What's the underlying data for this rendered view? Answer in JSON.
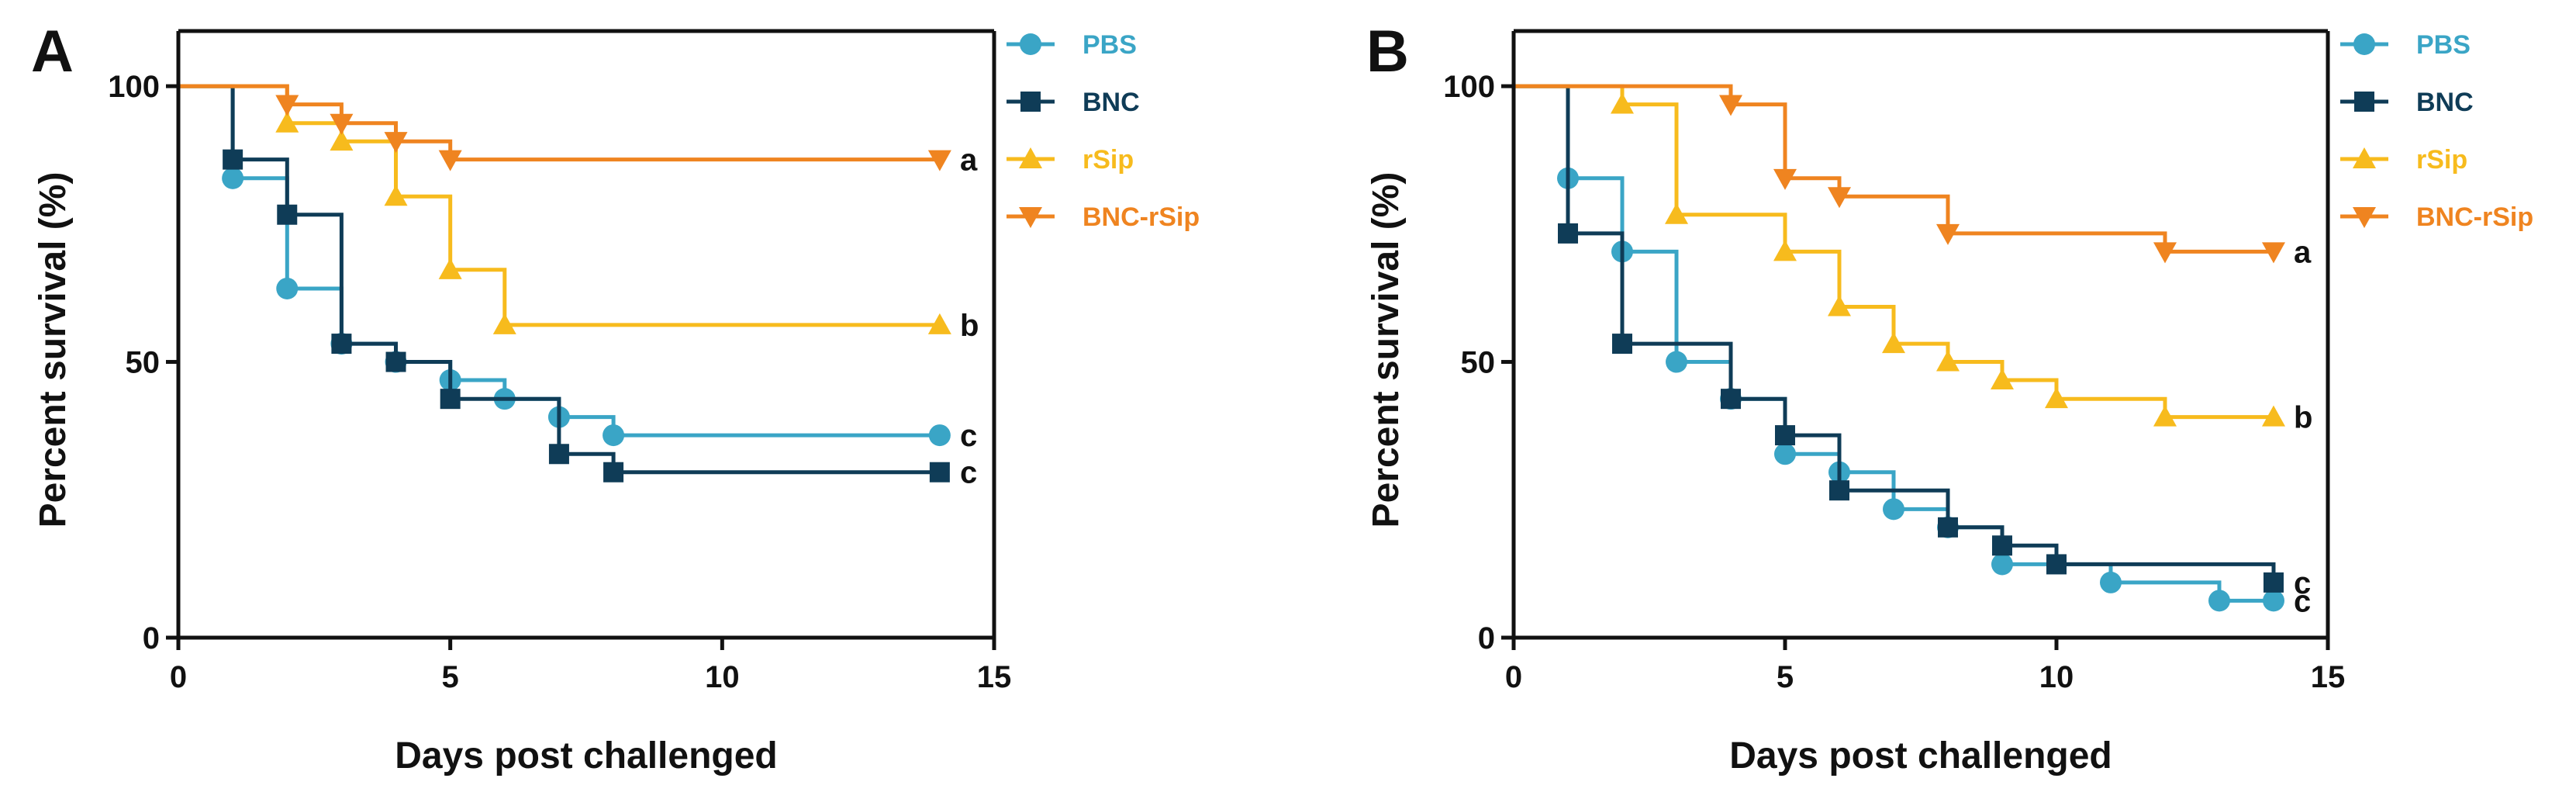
{
  "chart_data": [
    {
      "type": "line",
      "subtype": "kaplan-meier",
      "panel": "A",
      "xlabel": "Days post  challenged",
      "ylabel": "Percent survival (%)",
      "xlim": [
        0,
        15
      ],
      "ylim": [
        0,
        110
      ],
      "xticks": [
        0,
        5,
        10,
        15
      ],
      "yticks": [
        0,
        50,
        100
      ],
      "legend_position": "right",
      "series": [
        {
          "name": "PBS",
          "color": "#3aa5c6",
          "marker": "circle",
          "label": "c",
          "steps": [
            [
              1,
              83.3
            ],
            [
              2,
              63.3
            ],
            [
              3,
              53.3
            ],
            [
              4,
              50
            ],
            [
              5,
              46.7
            ],
            [
              6,
              43.3
            ],
            [
              7,
              40
            ],
            [
              8,
              36.7
            ]
          ],
          "end": 14
        },
        {
          "name": "BNC",
          "color": "#0f3c57",
          "marker": "square",
          "label": "c",
          "steps": [
            [
              1,
              86.7
            ],
            [
              2,
              76.7
            ],
            [
              3,
              53.3
            ],
            [
              4,
              50
            ],
            [
              5,
              43.3
            ],
            [
              7,
              33.3
            ],
            [
              8,
              30
            ]
          ],
          "end": 14
        },
        {
          "name": "rSip",
          "color": "#f7bb1d",
          "marker": "triangle-up",
          "label": "b",
          "steps": [
            [
              2,
              93.3
            ],
            [
              3,
              90
            ],
            [
              4,
              80
            ],
            [
              5,
              66.7
            ],
            [
              6,
              56.7
            ]
          ],
          "end": 14
        },
        {
          "name": "BNC-rSip",
          "color": "#ef8420",
          "marker": "triangle-down",
          "label": "a",
          "steps": [
            [
              2,
              96.7
            ],
            [
              3,
              93.3
            ],
            [
              4,
              90
            ],
            [
              5,
              86.7
            ]
          ],
          "end": 14
        }
      ]
    },
    {
      "type": "line",
      "subtype": "kaplan-meier",
      "panel": "B",
      "xlabel": "Days post  challenged",
      "ylabel": "Percent survival (%)",
      "xlim": [
        0,
        15
      ],
      "ylim": [
        0,
        110
      ],
      "xticks": [
        0,
        5,
        10,
        15
      ],
      "yticks": [
        0,
        50,
        100
      ],
      "legend_position": "right",
      "series": [
        {
          "name": "PBS",
          "color": "#3aa5c6",
          "marker": "circle",
          "label": "c",
          "steps": [
            [
              1,
              83.3
            ],
            [
              2,
              70
            ],
            [
              3,
              50
            ],
            [
              4,
              43.3
            ],
            [
              5,
              33.3
            ],
            [
              6,
              30
            ],
            [
              7,
              23.3
            ],
            [
              8,
              20
            ],
            [
              9,
              13.3
            ],
            [
              11,
              10
            ],
            [
              13,
              6.7
            ]
          ],
          "end": 14
        },
        {
          "name": "BNC",
          "color": "#0f3c57",
          "marker": "square",
          "label": "c",
          "steps": [
            [
              1,
              73.3
            ],
            [
              2,
              53.3
            ],
            [
              4,
              43.3
            ],
            [
              5,
              36.7
            ],
            [
              6,
              26.7
            ],
            [
              8,
              20
            ],
            [
              9,
              16.7
            ],
            [
              10,
              13.3
            ]
          ],
          "end": 14,
          "end_value": 10
        },
        {
          "name": "rSip",
          "color": "#f7bb1d",
          "marker": "triangle-up",
          "label": "b",
          "steps": [
            [
              2,
              96.7
            ],
            [
              3,
              76.7
            ],
            [
              5,
              70
            ],
            [
              6,
              60
            ],
            [
              7,
              53.3
            ],
            [
              8,
              50
            ],
            [
              9,
              46.7
            ],
            [
              10,
              43.3
            ],
            [
              12,
              40
            ]
          ],
          "end": 14
        },
        {
          "name": "BNC-rSip",
          "color": "#ef8420",
          "marker": "triangle-down",
          "label": "a",
          "steps": [
            [
              4,
              96.7
            ],
            [
              5,
              83.3
            ],
            [
              6,
              80
            ],
            [
              8,
              73.3
            ],
            [
              12,
              70
            ]
          ],
          "end": 14
        }
      ]
    }
  ]
}
